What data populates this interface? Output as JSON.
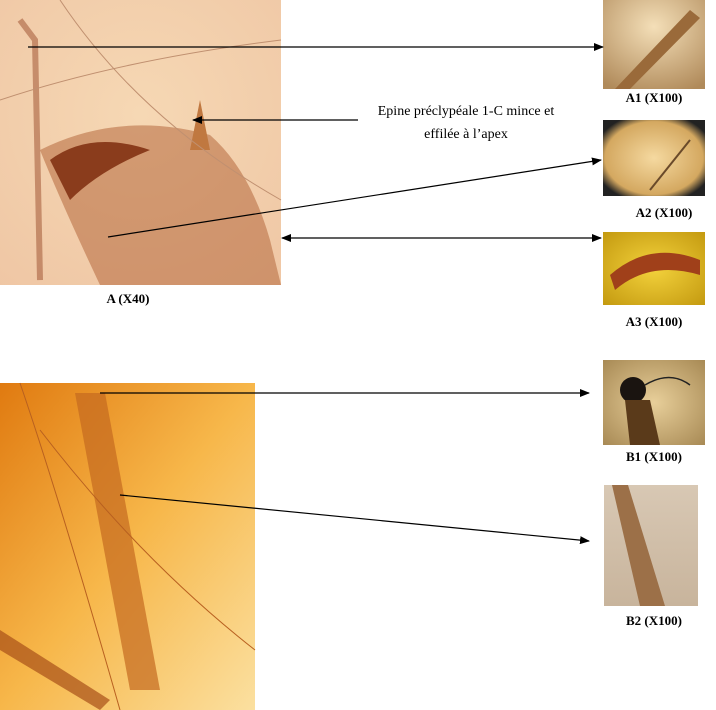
{
  "annotation": {
    "lines": [
      "Epine préclypéale 1-C  mince et",
      "effilée à l’apex"
    ]
  },
  "panels": [
    {
      "label": "A (X40)"
    },
    {
      "label": "A1 (X100)"
    },
    {
      "label": "A2 (X100)"
    },
    {
      "label": "A3 (X100)"
    },
    {
      "label": "B1 (X100)"
    },
    {
      "label": "B2 (X100)"
    }
  ]
}
